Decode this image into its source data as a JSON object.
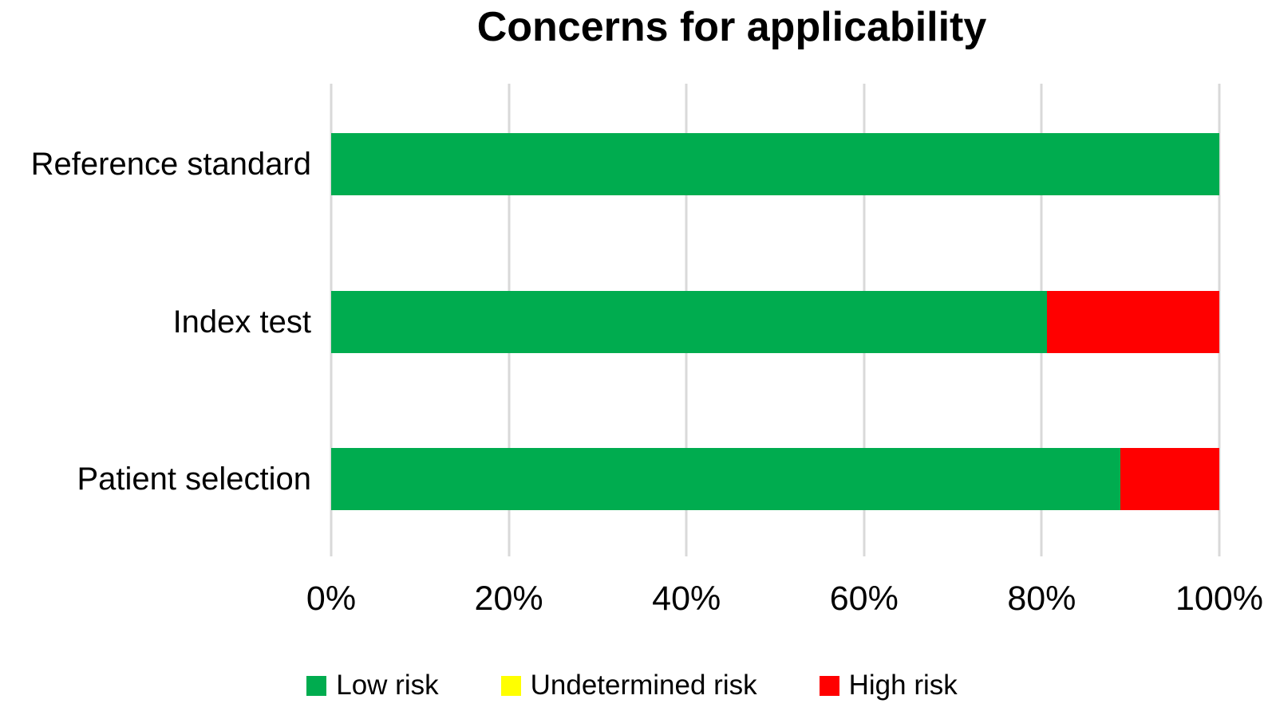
{
  "chart_data": {
    "type": "bar",
    "orientation": "horizontal",
    "stacked": true,
    "title": "Concerns for applicability",
    "categories": [
      "Reference standard",
      "Index test",
      "Patient selection"
    ],
    "series": [
      {
        "name": "Low risk",
        "color": "#00AC4F",
        "values": [
          100,
          80.6,
          88.9
        ]
      },
      {
        "name": "Undetermined risk",
        "color": "#FFFF00",
        "values": [
          0,
          0,
          0
        ]
      },
      {
        "name": "High risk",
        "color": "#FF0000",
        "values": [
          0,
          19.4,
          11.1
        ]
      }
    ],
    "x_ticks": [
      "0%",
      "20%",
      "40%",
      "60%",
      "80%",
      "100%"
    ],
    "xlim": [
      0,
      100
    ],
    "grid": true,
    "gridline_color": "#D9D9D9",
    "legend_position": "bottom"
  }
}
